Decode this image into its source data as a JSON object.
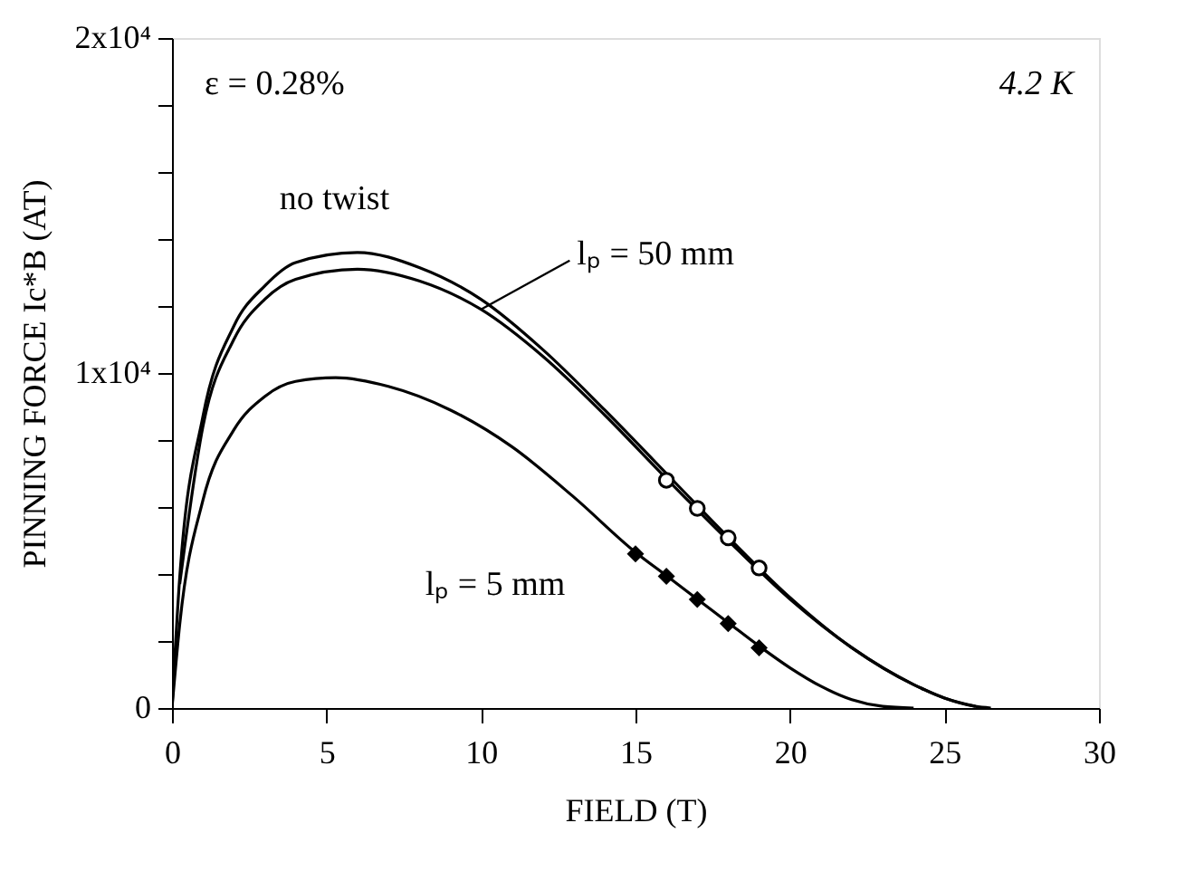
{
  "chart_data": {
    "type": "line",
    "xlabel": "FIELD (T)",
    "ylabel": "PINNING FORCE Ic*B (AT)",
    "xlim": [
      0,
      30
    ],
    "xticks": [
      0,
      5,
      10,
      15,
      20,
      25,
      30
    ],
    "ylim": [
      0,
      20000
    ],
    "yticks": [
      {
        "value": 0,
        "label": "0"
      },
      {
        "value": 2000,
        "label": null
      },
      {
        "value": 4000,
        "label": null
      },
      {
        "value": 6000,
        "label": null
      },
      {
        "value": 8000,
        "label": null
      },
      {
        "value": 10000,
        "label": "1x10⁴"
      },
      {
        "value": 12000,
        "label": null
      },
      {
        "value": 14000,
        "label": null
      },
      {
        "value": 16000,
        "label": null
      },
      {
        "value": 18000,
        "label": null
      },
      {
        "value": 20000,
        "label": "2x10⁴"
      }
    ],
    "grid": false,
    "line_style": "solid",
    "series": [
      {
        "color": "#000000",
        "marker": "none",
        "x": [
          0,
          0.25,
          1,
          2,
          3,
          4,
          6,
          8,
          10,
          12,
          14,
          16,
          18,
          20,
          22,
          24,
          25,
          26,
          26.5
        ],
        "values": [
          0,
          3900,
          8700,
          11400,
          12600,
          13300,
          13600,
          13150,
          12200,
          10700,
          8900,
          7000,
          5100,
          3300,
          1800,
          700,
          300,
          50,
          0
        ]
      },
      {
        "color": "#000000",
        "marker": "none",
        "x": [
          0.25,
          1,
          2,
          3,
          4,
          6,
          8,
          10,
          12,
          14,
          16,
          18,
          20,
          22,
          24,
          25,
          26
        ],
        "values": [
          3700,
          8400,
          11000,
          12200,
          12800,
          13100,
          12750,
          11900,
          10500,
          8750,
          6850,
          5000,
          3250,
          1800,
          700,
          300,
          50
        ]
      },
      {
        "color": "#000000",
        "marker": "none",
        "x": [
          0,
          0.25,
          1,
          2,
          3,
          4,
          5.3,
          7,
          9,
          11,
          13,
          15,
          16,
          17,
          18,
          19,
          20,
          21,
          22,
          23,
          24
        ],
        "values": [
          0,
          2500,
          6200,
          8300,
          9300,
          9750,
          9860,
          9600,
          8900,
          7800,
          6300,
          4650,
          3950,
          3250,
          2550,
          1850,
          1200,
          650,
          250,
          50,
          0
        ]
      },
      {
        "type": "scatter",
        "color": "#000000",
        "marker": "circle",
        "x": [
          16,
          17,
          18,
          19
        ],
        "values": [
          6800,
          5960,
          5080,
          4180
        ]
      },
      {
        "type": "scatter",
        "color": "#000000",
        "marker": "diamond",
        "x": [
          15,
          16,
          17,
          18,
          19
        ],
        "values": [
          4600,
          3930,
          3240,
          2520,
          1800
        ]
      }
    ],
    "annotations": [
      "ε = 0.28%",
      "4.2 K",
      {
        "text": "no twist",
        "x": 6,
        "y": 13600
      },
      {
        "text": "lₚ = 50 mm",
        "x": 10,
        "y": 11900
      },
      {
        "text": "lₚ = 5 mm",
        "x": 13,
        "y": 6300
      }
    ]
  }
}
